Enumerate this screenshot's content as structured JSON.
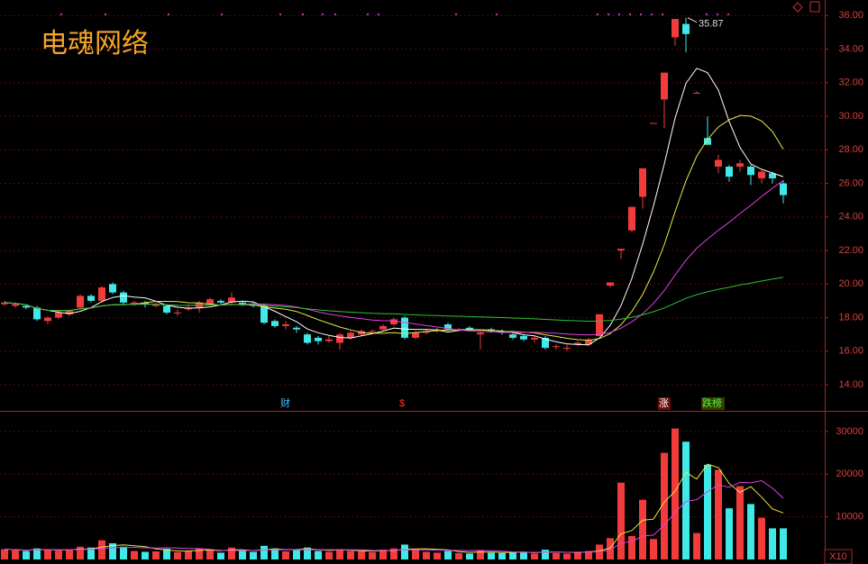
{
  "chart_data": [
    {
      "type": "candlestick",
      "title": "电魂网络",
      "open": [
        18.8,
        18.7,
        18.7,
        18.6,
        17.8,
        18.0,
        18.2,
        18.6,
        19.3,
        19.0,
        20.0,
        19.5,
        18.8,
        18.9,
        18.7,
        18.7,
        18.3,
        18.5,
        18.6,
        18.8,
        19.0,
        18.9,
        18.9,
        18.8,
        18.7,
        17.8,
        17.5,
        17.4,
        17.0,
        16.8,
        16.6,
        16.5,
        16.8,
        17.0,
        17.2,
        17.3,
        17.6,
        18.0,
        16.8,
        17.1,
        17.3,
        17.6,
        17.3,
        17.4,
        17.0,
        17.3,
        17.2,
        17.0,
        16.9,
        16.7,
        16.8,
        16.3,
        16.2,
        16.4,
        16.4,
        16.9,
        19.9,
        22.0,
        23.2,
        25.2,
        29.6,
        31.0,
        34.7,
        35.5,
        31.4,
        28.7,
        27.0,
        27.0,
        27.0,
        27.0,
        26.3,
        26.6,
        26.0
      ],
      "high": [
        19.0,
        18.9,
        18.8,
        18.7,
        18.1,
        18.4,
        18.5,
        19.4,
        19.4,
        19.9,
        20.1,
        19.6,
        19.0,
        19.0,
        18.9,
        18.8,
        18.5,
        18.8,
        19.0,
        19.2,
        19.1,
        19.5,
        19.0,
        18.9,
        18.8,
        17.9,
        17.8,
        17.5,
        17.1,
        16.9,
        16.9,
        17.1,
        17.2,
        17.3,
        17.3,
        17.6,
        18.0,
        18.1,
        17.2,
        17.3,
        17.4,
        17.7,
        17.4,
        17.5,
        17.2,
        17.4,
        17.3,
        17.1,
        17.0,
        16.9,
        16.9,
        16.4,
        16.4,
        16.6,
        16.8,
        18.2,
        20.1,
        22.1,
        24.6,
        26.9,
        29.6,
        32.6,
        35.8,
        35.87,
        31.5,
        30.0,
        27.7,
        27.1,
        27.4,
        27.1,
        26.8,
        26.7,
        26.2
      ],
      "low": [
        18.7,
        18.6,
        18.5,
        17.8,
        17.6,
        17.9,
        18.1,
        18.5,
        18.9,
        18.9,
        19.4,
        18.8,
        18.7,
        18.6,
        18.6,
        18.2,
        18.1,
        18.4,
        18.3,
        18.7,
        18.8,
        18.8,
        18.7,
        18.6,
        17.6,
        17.4,
        17.3,
        17.1,
        16.4,
        16.4,
        16.5,
        16.1,
        16.7,
        16.9,
        17.0,
        17.2,
        17.5,
        16.7,
        16.7,
        17.0,
        17.1,
        17.2,
        17.2,
        17.2,
        16.1,
        17.1,
        17.0,
        16.7,
        16.6,
        16.5,
        16.1,
        16.1,
        16.0,
        16.3,
        16.3,
        16.9,
        19.8,
        21.5,
        23.1,
        24.5,
        29.6,
        29.3,
        34.2,
        33.8,
        31.4,
        28.3,
        26.6,
        26.1,
        26.7,
        25.9,
        26.0,
        26.0,
        24.8
      ],
      "close": [
        18.9,
        18.8,
        18.6,
        17.9,
        18.0,
        18.3,
        18.4,
        19.3,
        19.0,
        19.8,
        19.5,
        18.9,
        18.9,
        18.8,
        18.8,
        18.3,
        18.3,
        18.6,
        18.9,
        19.1,
        18.9,
        19.2,
        18.8,
        18.7,
        17.7,
        17.5,
        17.6,
        17.3,
        16.5,
        16.6,
        16.7,
        17.0,
        17.1,
        17.2,
        17.2,
        17.5,
        17.9,
        16.8,
        17.1,
        17.2,
        17.3,
        17.3,
        17.3,
        17.3,
        17.1,
        17.2,
        17.1,
        16.8,
        16.7,
        16.8,
        16.2,
        16.3,
        16.2,
        16.5,
        16.7,
        18.2,
        20.1,
        22.1,
        24.6,
        26.9,
        29.6,
        32.6,
        35.8,
        34.9,
        31.4,
        28.3,
        27.4,
        26.4,
        27.2,
        26.5,
        26.7,
        26.3,
        25.3
      ],
      "up_color": "#f23b3b",
      "down_color": "#40e8e8",
      "ma": [
        {
          "period": 5,
          "color": "#ffffff"
        },
        {
          "period": 10,
          "color": "#e8e84a"
        },
        {
          "period": 20,
          "color": "#e040e0"
        },
        {
          "period": 60,
          "color": "#30c030"
        }
      ],
      "ylim": [
        12.5,
        36.5
      ],
      "yticks": [
        {
          "value": 14,
          "label": "14.00"
        },
        {
          "value": 16,
          "label": "16.00"
        },
        {
          "value": 18,
          "label": "18.00"
        },
        {
          "value": 20,
          "label": "20.00"
        },
        {
          "value": 22,
          "label": "22.00"
        },
        {
          "value": 24,
          "label": "24.00"
        },
        {
          "value": 26,
          "label": "26.00"
        },
        {
          "value": 28,
          "label": "28.00"
        },
        {
          "value": 30,
          "label": "30.00"
        },
        {
          "value": 32,
          "label": "32.00"
        },
        {
          "value": 34,
          "label": "34.00"
        },
        {
          "value": 36,
          "label": "36.00"
        }
      ],
      "grid": true,
      "high_label": "35.87",
      "event_labels": [
        "财",
        "$",
        "涨",
        "跌榜"
      ]
    },
    {
      "type": "bar",
      "values": [
        2400,
        2200,
        2000,
        2600,
        2300,
        2100,
        2200,
        3000,
        2800,
        4500,
        3800,
        3000,
        2000,
        1800,
        1900,
        2500,
        1700,
        2000,
        2600,
        2300,
        1600,
        2800,
        2000,
        1800,
        3200,
        2600,
        1900,
        2200,
        2800,
        2000,
        1800,
        2400,
        2000,
        1900,
        1700,
        2300,
        2600,
        3500,
        2400,
        1800,
        1600,
        2000,
        1500,
        1400,
        2200,
        1600,
        1500,
        1700,
        1800,
        1400,
        2300,
        1500,
        1400,
        1600,
        2000,
        3500,
        5000,
        18000,
        5500,
        14000,
        4800,
        25000,
        30700,
        27600,
        6200,
        22200,
        21000,
        12000,
        17200,
        13000,
        9800,
        7300,
        7300
      ],
      "ma": [
        {
          "period": 5,
          "color": "#e8e84a"
        },
        {
          "period": 10,
          "color": "#e040e0"
        }
      ],
      "ylim": [
        0,
        34200
      ],
      "yticks": [
        10000,
        20000,
        30000
      ],
      "grid": true,
      "axis_note": "X10"
    }
  ]
}
